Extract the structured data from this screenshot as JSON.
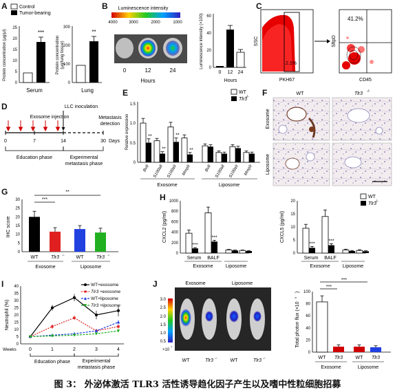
{
  "labels": {
    "A": "A",
    "B": "B",
    "C": "C",
    "D": "D",
    "E": "E",
    "F": "F",
    "G": "G",
    "H": "H",
    "I": "I",
    "J": "J"
  },
  "caption": "图 3： 外泌体激活 TLR3 活性诱导趋化因子产生以及嗜中性粒细胞招募",
  "panelA": {
    "legend": [
      "Control",
      "Tumor-bearing"
    ],
    "serum": {
      "ylabel": "Protein concentration (μg/μl)",
      "xlabel": "Serum",
      "ticks": [
        "0",
        "5",
        "10",
        "15",
        "20",
        "25"
      ],
      "sig": "***"
    },
    "lung": {
      "ylabel": "Protein concentration (μg/lung tissue)",
      "xlabel": "Lung",
      "ticks": [
        "0",
        "100",
        "200",
        "300"
      ],
      "sig": "**"
    }
  },
  "panelB": {
    "lum_title": "Luminescence intensity",
    "scale": [
      "4000",
      "3000",
      "2000",
      "1000"
    ],
    "times": [
      "0",
      "12",
      "24"
    ],
    "xlabel": "Hours",
    "bar_ylabel": "Luminescence intensity (×100)",
    "bar_ticks": [
      "0",
      "20",
      "40",
      "60"
    ],
    "bar_x": [
      "0",
      "12",
      "24"
    ],
    "bar_xlabel": "Hours"
  },
  "panelC": {
    "ssc": "SSC",
    "pkh": "PKH67",
    "gate_pct": "2.1%",
    "sftpd": "SftpD",
    "cd45": "CD45",
    "q_pct": "41.2%"
  },
  "panelD": {
    "inj": "Exosome injection",
    "llc": "LLC inoculation",
    "meta": [
      "Metastasis",
      "detection"
    ],
    "ticks": [
      "0",
      "7",
      "14",
      "30"
    ],
    "days": "Days",
    "edu": "Education phase",
    "exp": [
      "Experimental",
      "metastasis phase"
    ]
  },
  "panelE": {
    "legend": [
      "WT",
      "Tlr3"
    ],
    "ylabel": "Relative expression",
    "ticks": [
      "0",
      "0.5",
      "1.0",
      "1.5"
    ],
    "genes": [
      "Bv8",
      "S100a8",
      "S100a9",
      "Mmp9",
      "Bv8",
      "S100a8",
      "S100a9",
      "Mmp9"
    ],
    "groups": [
      "Exosome",
      "Liposome"
    ],
    "sig": [
      "**",
      "**",
      "**",
      "**"
    ]
  },
  "panelF": {
    "cols": [
      "WT",
      "Tlr3"
    ],
    "rows": [
      "Exosome",
      "Liposome"
    ]
  },
  "panelG": {
    "ylabel": "IHC score",
    "ticks": [
      "0",
      "5",
      "10",
      "15",
      "20",
      "25",
      "30"
    ],
    "x": [
      "WT",
      "Tlr3",
      "WT",
      "Tlr3"
    ],
    "groups": [
      "Exosome",
      "Liposome"
    ],
    "sig": [
      "***",
      "**"
    ]
  },
  "panelH": {
    "legend": [
      "WT",
      "Tlr3"
    ],
    "left": {
      "ylabel": "CXCL2 (pg/ml)",
      "ticks": [
        "0",
        "200",
        "400",
        "600",
        "800",
        "1000"
      ]
    },
    "right": {
      "ylabel": "CXCL5 (pg/ml)",
      "ticks": [
        "0",
        "5",
        "10",
        "15",
        "20"
      ]
    },
    "x": [
      "Serum",
      "BALF"
    ],
    "groups": [
      "Exosome",
      "Liposome"
    ],
    "sig": "***"
  },
  "panelI": {
    "ylabel": "Neutrophil (%)",
    "ticks": [
      "0",
      "5",
      "10",
      "15",
      "20",
      "25",
      "30",
      "35",
      "40"
    ],
    "legend": [
      "WT+exosome",
      "Tlr3 +exosome",
      "WT+liposome",
      "Tlr3 +liposome"
    ],
    "xticks": [
      "0",
      "1",
      "2",
      "3",
      "4"
    ],
    "weeks": "Weeks",
    "edu": "Education phase",
    "exp": [
      "Experimental",
      "metastasis phase"
    ]
  },
  "panelJ": {
    "heads": [
      "Exosome",
      "Liposome"
    ],
    "scale": [
      "3.0",
      "2.5",
      "2.0",
      "1.5",
      "1.0",
      "0.5"
    ],
    "scale_exp": "×10",
    "mice": [
      "WT",
      "Tlr3",
      "WT",
      "Tlr3"
    ],
    "ylabel": "Total photon flux (×10",
    "ticks": [
      "0",
      "20",
      "40",
      "60",
      "80",
      "100"
    ],
    "x": [
      "WT",
      "Tlr3",
      "WT",
      "Tlr3"
    ],
    "groups": [
      "Exosome",
      "Liposome"
    ],
    "sig": [
      "***",
      "***"
    ]
  }
}
